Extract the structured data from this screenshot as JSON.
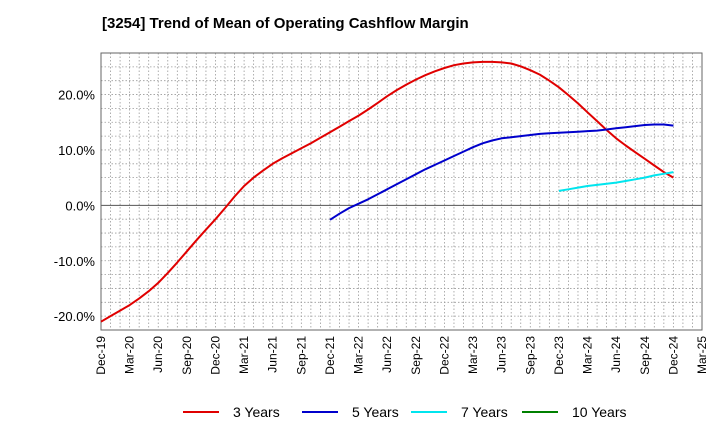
{
  "title": "[3254]  Trend of Mean of Operating Cashflow Margin",
  "chart_data": {
    "type": "line",
    "title": "[3254]  Trend of Mean of Operating Cashflow Margin",
    "xlabel": "",
    "ylabel": "",
    "x_ticks": [
      "Dec-19",
      "Mar-20",
      "Jun-20",
      "Sep-20",
      "Dec-20",
      "Mar-21",
      "Jun-21",
      "Sep-21",
      "Dec-21",
      "Mar-22",
      "Jun-22",
      "Sep-22",
      "Dec-22",
      "Mar-23",
      "Jun-23",
      "Sep-23",
      "Dec-23",
      "Mar-24",
      "Jun-24",
      "Sep-24",
      "Dec-24",
      "Mar-25"
    ],
    "y_ticks": [
      -20,
      -10,
      0,
      10,
      20
    ],
    "y_tick_labels": [
      "-20.0%",
      "-10.0%",
      "0.0%",
      "10.0%",
      "20.0%"
    ],
    "ylim": [
      -22.5,
      27.5
    ],
    "grid": true,
    "legend_position": "bottom",
    "series": [
      {
        "name": "3 Years",
        "color": "#e00000",
        "x": [
          "Dec-19",
          "Jan-20",
          "Feb-20",
          "Mar-20",
          "Apr-20",
          "May-20",
          "Jun-20",
          "Jul-20",
          "Aug-20",
          "Sep-20",
          "Oct-20",
          "Nov-20",
          "Dec-20",
          "Jan-21",
          "Feb-21",
          "Mar-21",
          "Apr-21",
          "May-21",
          "Jun-21",
          "Jul-21",
          "Aug-21",
          "Sep-21",
          "Oct-21",
          "Nov-21",
          "Dec-21",
          "Jan-22",
          "Feb-22",
          "Mar-22",
          "Apr-22",
          "May-22",
          "Jun-22",
          "Jul-22",
          "Aug-22",
          "Sep-22",
          "Oct-22",
          "Nov-22",
          "Dec-22",
          "Jan-23",
          "Feb-23",
          "Mar-23",
          "Apr-23",
          "May-23",
          "Jun-23",
          "Jul-23",
          "Aug-23",
          "Sep-23",
          "Oct-23",
          "Nov-23",
          "Dec-23",
          "Jan-24",
          "Feb-24",
          "Mar-24",
          "Apr-24",
          "May-24",
          "Jun-24",
          "Jul-24",
          "Aug-24",
          "Sep-24",
          "Oct-24",
          "Nov-24",
          "Dec-24"
        ],
        "values": [
          -21.0,
          -20.0,
          -19.0,
          -18.0,
          -16.8,
          -15.5,
          -14.0,
          -12.2,
          -10.3,
          -8.3,
          -6.3,
          -4.4,
          -2.5,
          -0.5,
          1.6,
          3.5,
          5.0,
          6.3,
          7.5,
          8.5,
          9.4,
          10.3,
          11.2,
          12.2,
          13.2,
          14.2,
          15.2,
          16.2,
          17.3,
          18.5,
          19.7,
          20.8,
          21.8,
          22.7,
          23.5,
          24.2,
          24.8,
          25.3,
          25.6,
          25.8,
          25.9,
          25.9,
          25.8,
          25.6,
          25.1,
          24.4,
          23.6,
          22.5,
          21.3,
          19.9,
          18.4,
          16.8,
          15.2,
          13.6,
          12.1,
          10.8,
          9.6,
          8.4,
          7.2,
          6.0,
          5.0
        ]
      },
      {
        "name": "5 Years",
        "color": "#0000cc",
        "x": [
          "Dec-21",
          "Jan-22",
          "Feb-22",
          "Mar-22",
          "Apr-22",
          "May-22",
          "Jun-22",
          "Jul-22",
          "Aug-22",
          "Sep-22",
          "Oct-22",
          "Nov-22",
          "Dec-22",
          "Jan-23",
          "Feb-23",
          "Mar-23",
          "Apr-23",
          "May-23",
          "Jun-23",
          "Jul-23",
          "Aug-23",
          "Sep-23",
          "Oct-23",
          "Nov-23",
          "Dec-23",
          "Jan-24",
          "Feb-24",
          "Mar-24",
          "Apr-24",
          "May-24",
          "Jun-24",
          "Jul-24",
          "Aug-24",
          "Sep-24",
          "Oct-24",
          "Nov-24",
          "Dec-24"
        ],
        "values": [
          -2.6,
          -1.5,
          -0.5,
          0.3,
          1.1,
          2.0,
          2.9,
          3.8,
          4.7,
          5.6,
          6.5,
          7.3,
          8.1,
          8.9,
          9.7,
          10.5,
          11.2,
          11.7,
          12.1,
          12.3,
          12.5,
          12.7,
          12.9,
          13.0,
          13.1,
          13.2,
          13.3,
          13.4,
          13.5,
          13.7,
          13.9,
          14.1,
          14.3,
          14.5,
          14.6,
          14.6,
          14.4
        ]
      },
      {
        "name": "7 Years",
        "color": "#00e5ee",
        "x": [
          "Dec-23",
          "Jan-24",
          "Feb-24",
          "Mar-24",
          "Apr-24",
          "May-24",
          "Jun-24",
          "Jul-24",
          "Aug-24",
          "Sep-24",
          "Oct-24",
          "Nov-24",
          "Dec-24"
        ],
        "values": [
          2.6,
          2.9,
          3.2,
          3.5,
          3.7,
          3.9,
          4.1,
          4.4,
          4.7,
          5.0,
          5.4,
          5.7,
          6.0
        ]
      },
      {
        "name": "10 Years",
        "color": "#008000",
        "x": [],
        "values": []
      }
    ]
  }
}
